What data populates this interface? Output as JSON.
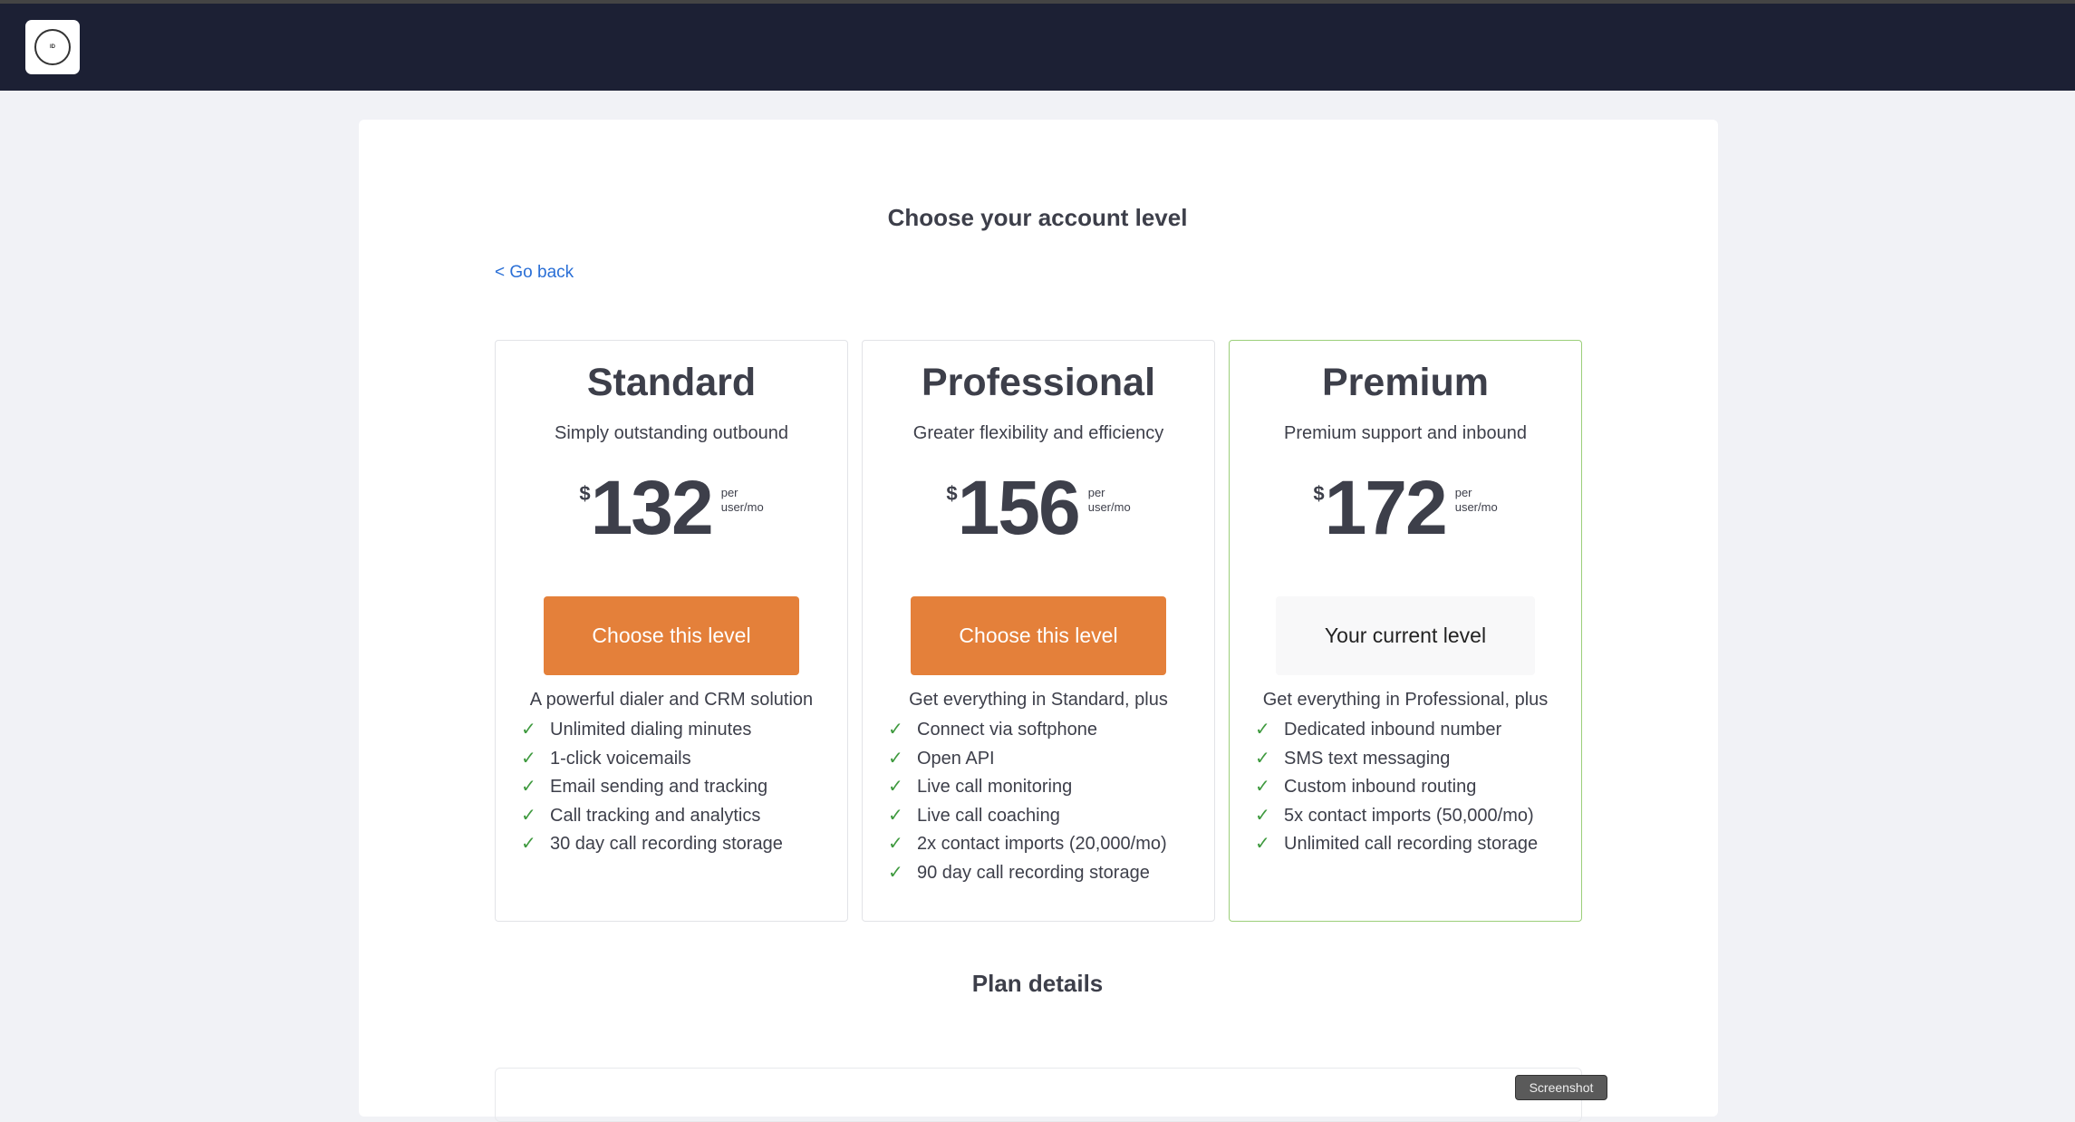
{
  "header": {
    "logo_text": "InheritedData"
  },
  "page": {
    "title": "Choose your account level",
    "go_back": "< Go back",
    "plan_details": "Plan details"
  },
  "colors": {
    "accent": "#e4803a",
    "nav": "#1c2034",
    "current_border": "#9ccf7a",
    "check": "#3f9a3f",
    "link": "#2a6fd6"
  },
  "plans": [
    {
      "name": "Standard",
      "subtitle": "Simply outstanding outbound",
      "currency": "$",
      "price": "132",
      "unit_1": "per",
      "unit_2": "user/mo",
      "button": "Choose this level",
      "lead": "A powerful dialer and CRM solution",
      "features": [
        "Unlimited dialing minutes",
        "1-click voicemails",
        "Email sending and tracking",
        "Call tracking and analytics",
        "30 day call recording storage"
      ]
    },
    {
      "name": "Professional",
      "subtitle": "Greater flexibility and efficiency",
      "currency": "$",
      "price": "156",
      "unit_1": "per",
      "unit_2": "user/mo",
      "button": "Choose this level",
      "lead": "Get everything in Standard, plus",
      "features": [
        "Connect via softphone",
        "Open API",
        "Live call monitoring",
        "Live call coaching",
        "2x contact imports (20,000/mo)",
        "90 day call recording storage"
      ]
    },
    {
      "name": "Premium",
      "subtitle": "Premium support and inbound",
      "currency": "$",
      "price": "172",
      "unit_1": "per",
      "unit_2": "user/mo",
      "button": "Your current level",
      "lead": "Get everything in Professional, plus",
      "features": [
        "Dedicated inbound number",
        "SMS text messaging",
        "Custom inbound routing",
        "5x contact imports (50,000/mo)",
        "Unlimited call recording storage"
      ]
    }
  ],
  "tooltip": "Screenshot"
}
